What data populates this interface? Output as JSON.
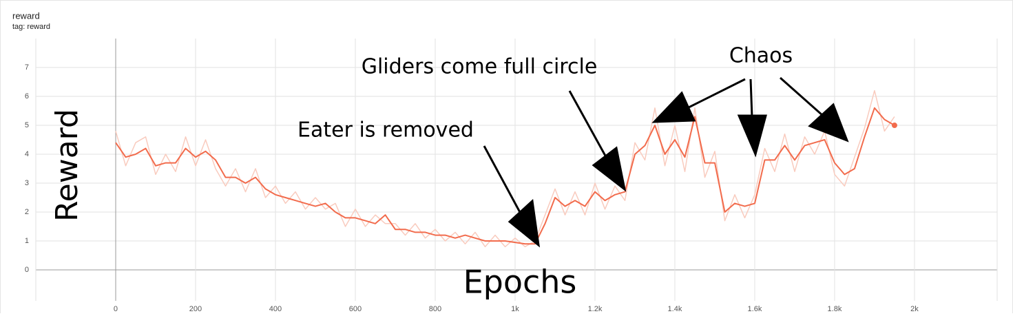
{
  "chart_data": {
    "type": "line",
    "title": "reward",
    "subtitle": "tag: reward",
    "x_label": "Epochs",
    "y_label": "Reward",
    "annotations": [
      "Gliders come full circle",
      "Eater is removed",
      "Chaos"
    ],
    "x": [
      0,
      25,
      50,
      75,
      100,
      125,
      150,
      175,
      200,
      225,
      250,
      275,
      300,
      325,
      350,
      375,
      400,
      425,
      450,
      475,
      500,
      525,
      550,
      575,
      600,
      625,
      650,
      675,
      700,
      725,
      750,
      775,
      800,
      825,
      850,
      875,
      900,
      925,
      950,
      975,
      1000,
      1025,
      1050,
      1075,
      1100,
      1125,
      1150,
      1175,
      1200,
      1225,
      1250,
      1275,
      1300,
      1325,
      1350,
      1375,
      1400,
      1425,
      1450,
      1475,
      1500,
      1525,
      1550,
      1575,
      1600,
      1625,
      1650,
      1675,
      1700,
      1725,
      1750,
      1775,
      1800,
      1825,
      1850,
      1875,
      1900,
      1925,
      1950
    ],
    "series": [
      {
        "color": "#f9cbbe",
        "values": [
          4.8,
          3.6,
          4.4,
          4.6,
          3.3,
          4.0,
          3.4,
          4.6,
          3.6,
          4.5,
          3.5,
          2.9,
          3.5,
          2.7,
          3.5,
          2.5,
          2.9,
          2.3,
          2.7,
          2.1,
          2.5,
          2.1,
          2.3,
          1.5,
          2.1,
          1.5,
          1.9,
          1.6,
          1.6,
          1.2,
          1.6,
          1.1,
          1.4,
          1.0,
          1.3,
          0.9,
          1.3,
          0.8,
          1.2,
          0.8,
          1.1,
          0.8,
          1.0,
          1.9,
          2.8,
          1.9,
          2.7,
          1.9,
          3.0,
          2.1,
          2.9,
          2.4,
          4.4,
          3.8,
          5.6,
          3.6,
          5.0,
          3.4,
          5.6,
          3.2,
          4.1,
          1.7,
          2.6,
          1.8,
          2.6,
          4.2,
          3.4,
          4.7,
          3.4,
          4.6,
          4.0,
          4.8,
          3.3,
          2.9,
          3.9,
          4.9,
          6.2,
          4.8,
          5.3
        ]
      },
      {
        "color": "#f26b4c",
        "values": [
          4.4,
          3.9,
          4.0,
          4.2,
          3.6,
          3.7,
          3.7,
          4.2,
          3.9,
          4.1,
          3.8,
          3.2,
          3.2,
          3.0,
          3.2,
          2.8,
          2.6,
          2.5,
          2.4,
          2.3,
          2.2,
          2.3,
          2.0,
          1.8,
          1.8,
          1.7,
          1.6,
          1.9,
          1.4,
          1.4,
          1.3,
          1.3,
          1.2,
          1.2,
          1.1,
          1.2,
          1.1,
          1.0,
          1.0,
          1.0,
          0.95,
          0.9,
          0.9,
          1.6,
          2.5,
          2.2,
          2.4,
          2.2,
          2.7,
          2.4,
          2.6,
          2.7,
          4.0,
          4.3,
          5.0,
          4.0,
          4.5,
          3.9,
          5.3,
          3.7,
          3.7,
          2.0,
          2.3,
          2.2,
          2.3,
          3.8,
          3.8,
          4.3,
          3.8,
          4.3,
          4.4,
          4.5,
          3.7,
          3.3,
          3.5,
          4.6,
          5.6,
          5.2,
          5.0
        ]
      }
    ],
    "xlim": [
      -200,
      2207
    ],
    "ylim": [
      -1.07,
      8
    ],
    "xticks": [
      0,
      200,
      400,
      600,
      800,
      {
        "value": 1000,
        "label": "1k"
      },
      {
        "value": 1200,
        "label": "1.2k"
      },
      {
        "value": 1400,
        "label": "1.4k"
      },
      {
        "value": 1600,
        "label": "1.6k"
      },
      {
        "value": 1800,
        "label": "1.8k"
      },
      {
        "value": 2000,
        "label": "2k"
      }
    ],
    "yticks": [
      0,
      1,
      2,
      3,
      4,
      5,
      6,
      7
    ],
    "grid": true
  }
}
